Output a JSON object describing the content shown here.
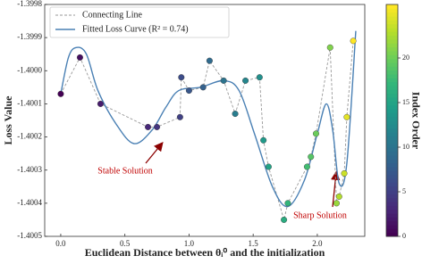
{
  "chart_data": {
    "type": "scatter-line",
    "x_label": "Euclidean Distance between θᵢ⁰ and the initialization",
    "y_label": "Loss Value",
    "colorbar_label": "Index Order",
    "colormap": "viridis",
    "clim": [
      0,
      26
    ],
    "cticks": [
      0,
      5,
      10,
      15,
      20
    ],
    "xlim": [
      -0.125,
      2.37
    ],
    "xticks": [
      {
        "value": 0,
        "label": "0.0"
      },
      0.5,
      {
        "value": 1,
        "label": "1.0"
      },
      1.5,
      {
        "value": 2,
        "label": "2.0"
      }
    ],
    "ylim": [
      -1.4005,
      -1.3998
    ],
    "yticks": [
      -1.3998,
      -1.3999,
      {
        "value": -1.4,
        "label": "-1.4000"
      },
      -1.4001,
      -1.4002,
      -1.4003,
      -1.4004,
      -1.4005
    ],
    "series": [
      {
        "name": "Connecting Line",
        "color": "#999999",
        "x": [
          0.0,
          0.15,
          0.31,
          0.68,
          0.75,
          0.93,
          0.94,
          1.0,
          1.11,
          1.16,
          1.27,
          1.36,
          1.44,
          1.55,
          1.58,
          1.62,
          1.74,
          1.77,
          1.92,
          1.95,
          1.99,
          2.1,
          2.15,
          2.17,
          2.21,
          2.23,
          2.28
        ],
        "values": [
          -1.40007,
          -1.39996,
          -1.4001,
          -1.40017,
          -1.40017,
          -1.40014,
          -1.40002,
          -1.40006,
          -1.40005,
          -1.39997,
          -1.40003,
          -1.40013,
          -1.40003,
          -1.40002,
          -1.40021,
          -1.40029,
          -1.40045,
          -1.4004,
          -1.40029,
          -1.40026,
          -1.40019,
          -1.39993,
          -1.4004,
          -1.40038,
          -1.40031,
          -1.40014,
          -1.39991
        ]
      },
      {
        "name": "Fitted Loss Curve (R² = 0.74)",
        "color": "#4a80b4",
        "x": [
          0.0,
          0.06,
          0.12,
          0.2,
          0.29,
          0.43,
          0.57,
          0.71,
          0.82,
          0.92,
          1.09,
          1.27,
          1.39,
          1.51,
          1.65,
          1.77,
          1.9,
          2.0,
          2.07,
          2.12,
          2.17,
          2.23,
          2.3
        ],
        "values": [
          -1.40007,
          -1.39996,
          -1.39993,
          -1.39995,
          -1.40006,
          -1.40016,
          -1.40022,
          -1.40018,
          -1.40011,
          -1.40006,
          -1.40005,
          -1.40003,
          -1.40006,
          -1.40019,
          -1.40035,
          -1.40041,
          -1.40033,
          -1.40019,
          -1.4001,
          -1.40018,
          -1.40034,
          -1.40028,
          -1.39988
        ]
      }
    ],
    "annotations": [
      "Stable Solution",
      "Sharp Solution"
    ]
  }
}
